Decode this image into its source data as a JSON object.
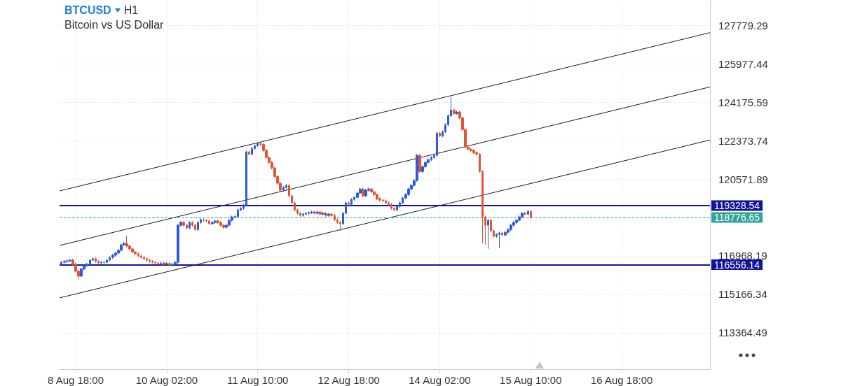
{
  "chart_data": {
    "type": "candlestick",
    "title": "BTCUSD",
    "subtitle": "Bitcoin vs US Dollar",
    "annotations": [
      "H1"
    ],
    "xlim": [
      "--08-08T12:20",
      "--08-18T01:00"
    ],
    "xticks": [
      {
        "value": "--08-08T18:00",
        "label": "8 Aug 18:00"
      },
      {
        "value": "--08-10T02:00",
        "label": "10 Aug 02:00"
      },
      {
        "value": "--08-11T10:00",
        "label": "11 Aug 10:00"
      },
      {
        "value": "--08-12T18:00",
        "label": "12 Aug 18:00"
      },
      {
        "value": "--08-14T02:00",
        "label": "14 Aug 02:00"
      },
      {
        "value": "--08-15T10:00",
        "label": "15 Aug 10:00"
      },
      {
        "value": "--08-16T18:00",
        "label": "16 Aug 18:00"
      }
    ],
    "ylim": [
      111650,
      128950
    ],
    "yticks": [
      113364.49,
      115166.34,
      116968.19,
      120571.89,
      122373.74,
      124175.59,
      125977.44,
      127779.29
    ],
    "grid": true,
    "series": [
      {
        "x": [
          "--08-08T13:00",
          "--08-08T14:00",
          "--08-08T15:00",
          "--08-08T16:00",
          "--08-08T17:00",
          "--08-08T18:00",
          "--08-08T19:00",
          "--08-08T20:00",
          "--08-08T21:00",
          "--08-08T22:00",
          "--08-08T23:00",
          "--08-09T00:00",
          "--08-09T01:00",
          "--08-09T02:00",
          "--08-09T03:00",
          "--08-09T04:00",
          "--08-09T05:00",
          "--08-09T06:00",
          "--08-09T07:00",
          "--08-09T08:00",
          "--08-09T09:00",
          "--08-09T10:00",
          "--08-09T11:00",
          "--08-09T12:00",
          "--08-09T13:00",
          "--08-09T14:00",
          "--08-09T15:00",
          "--08-09T16:00",
          "--08-09T17:00",
          "--08-09T18:00",
          "--08-09T19:00",
          "--08-09T20:00",
          "--08-09T21:00",
          "--08-09T22:00",
          "--08-09T23:00",
          "--08-10T00:00",
          "--08-10T01:00",
          "--08-10T02:00",
          "--08-10T03:00",
          "--08-10T04:00",
          "--08-10T05:00",
          "--08-10T06:00",
          "--08-10T07:00",
          "--08-10T08:00",
          "--08-10T09:00",
          "--08-10T10:00",
          "--08-10T11:00",
          "--08-10T12:00",
          "--08-10T13:00",
          "--08-10T14:00",
          "--08-10T15:00",
          "--08-10T16:00",
          "--08-10T17:00",
          "--08-10T18:00",
          "--08-10T19:00",
          "--08-10T20:00",
          "--08-10T21:00",
          "--08-10T22:00",
          "--08-10T23:00",
          "--08-11T00:00",
          "--08-11T01:00",
          "--08-11T02:00",
          "--08-11T03:00",
          "--08-11T04:00",
          "--08-11T05:00",
          "--08-11T06:00",
          "--08-11T07:00",
          "--08-11T08:00",
          "--08-11T09:00",
          "--08-11T10:00",
          "--08-11T11:00",
          "--08-11T12:00",
          "--08-11T13:00",
          "--08-11T14:00",
          "--08-11T15:00",
          "--08-11T16:00",
          "--08-11T17:00",
          "--08-11T18:00",
          "--08-11T19:00",
          "--08-11T20:00",
          "--08-11T21:00",
          "--08-11T22:00",
          "--08-11T23:00",
          "--08-12T00:00",
          "--08-12T01:00",
          "--08-12T02:00",
          "--08-12T03:00",
          "--08-12T04:00",
          "--08-12T05:00",
          "--08-12T06:00",
          "--08-12T07:00",
          "--08-12T08:00",
          "--08-12T09:00",
          "--08-12T10:00",
          "--08-12T11:00",
          "--08-12T12:00",
          "--08-12T13:00",
          "--08-12T14:00",
          "--08-12T15:00",
          "--08-12T16:00",
          "--08-12T17:00",
          "--08-12T18:00",
          "--08-12T19:00",
          "--08-12T20:00",
          "--08-12T21:00",
          "--08-12T22:00",
          "--08-12T23:00",
          "--08-13T00:00",
          "--08-13T01:00",
          "--08-13T02:00",
          "--08-13T03:00",
          "--08-13T04:00",
          "--08-13T05:00",
          "--08-13T06:00",
          "--08-13T07:00",
          "--08-13T08:00",
          "--08-13T09:00",
          "--08-13T10:00",
          "--08-13T11:00",
          "--08-13T12:00",
          "--08-13T13:00",
          "--08-13T14:00",
          "--08-13T15:00",
          "--08-13T16:00",
          "--08-13T17:00",
          "--08-13T18:00",
          "--08-13T19:00",
          "--08-13T20:00",
          "--08-13T21:00",
          "--08-13T22:00",
          "--08-13T23:00",
          "--08-14T00:00",
          "--08-14T01:00",
          "--08-14T02:00",
          "--08-14T03:00",
          "--08-14T04:00",
          "--08-14T05:00",
          "--08-14T06:00",
          "--08-14T07:00",
          "--08-14T08:00",
          "--08-14T09:00",
          "--08-14T10:00",
          "--08-14T11:00",
          "--08-14T12:00",
          "--08-14T13:00",
          "--08-14T14:00",
          "--08-14T15:00",
          "--08-14T16:00",
          "--08-14T17:00",
          "--08-14T18:00",
          "--08-14T19:00",
          "--08-14T20:00",
          "--08-14T21:00",
          "--08-14T22:00",
          "--08-14T23:00",
          "--08-15T00:00",
          "--08-15T01:00",
          "--08-15T02:00",
          "--08-15T03:00",
          "--08-15T04:00",
          "--08-15T05:00",
          "--08-15T06:00",
          "--08-15T07:00",
          "--08-15T08:00",
          "--08-15T09:00",
          "--08-15T10:00"
        ],
        "ohlc": [
          [
            116580,
            116730,
            116520,
            116670
          ],
          [
            116670,
            116770,
            116610,
            116710
          ],
          [
            116710,
            116800,
            116650,
            116740
          ],
          [
            116740,
            116830,
            116680,
            116770
          ],
          [
            116770,
            116830,
            116520,
            116580
          ],
          [
            116580,
            116640,
            116190,
            116250
          ],
          [
            116250,
            116310,
            115850,
            116020
          ],
          [
            116020,
            116410,
            115960,
            116350
          ],
          [
            116350,
            116570,
            116290,
            116510
          ],
          [
            116510,
            116640,
            116450,
            116580
          ],
          [
            116580,
            116830,
            116520,
            116770
          ],
          [
            116770,
            116900,
            116710,
            116840
          ],
          [
            116840,
            116900,
            116650,
            116710
          ],
          [
            116710,
            116770,
            116580,
            116640
          ],
          [
            116640,
            116730,
            116580,
            116670
          ],
          [
            116670,
            116730,
            116610,
            116670
          ],
          [
            116670,
            116830,
            116610,
            116770
          ],
          [
            116770,
            116960,
            116710,
            116900
          ],
          [
            116900,
            117060,
            116840,
            117000
          ],
          [
            117000,
            117160,
            116940,
            117100
          ],
          [
            117100,
            117290,
            117040,
            117230
          ],
          [
            117230,
            117550,
            117170,
            117490
          ],
          [
            117490,
            117620,
            117430,
            117560
          ],
          [
            117560,
            117920,
            117370,
            117430
          ],
          [
            117430,
            117490,
            117240,
            117300
          ],
          [
            117300,
            117360,
            117100,
            117160
          ],
          [
            117160,
            117220,
            117010,
            117070
          ],
          [
            117070,
            117130,
            116910,
            116970
          ],
          [
            116970,
            117030,
            116840,
            116900
          ],
          [
            116900,
            116960,
            116780,
            116840
          ],
          [
            116840,
            116900,
            116710,
            116770
          ],
          [
            116770,
            116830,
            116650,
            116710
          ],
          [
            116710,
            116770,
            116610,
            116670
          ],
          [
            116670,
            116730,
            116580,
            116640
          ],
          [
            116640,
            116700,
            116550,
            116610
          ],
          [
            116610,
            116700,
            116550,
            116640
          ],
          [
            116640,
            116700,
            116520,
            116580
          ],
          [
            116580,
            116670,
            116520,
            116610
          ],
          [
            116610,
            116670,
            116480,
            116540
          ],
          [
            116540,
            116640,
            116480,
            116580
          ],
          [
            116580,
            116730,
            116520,
            116670
          ],
          [
            116670,
            118470,
            116610,
            118410
          ],
          [
            118410,
            118600,
            118350,
            118540
          ],
          [
            118540,
            118600,
            118350,
            118410
          ],
          [
            118410,
            118470,
            118220,
            118280
          ],
          [
            118280,
            118600,
            118220,
            118540
          ],
          [
            118540,
            118600,
            118350,
            118410
          ],
          [
            118410,
            118470,
            118150,
            118210
          ],
          [
            118210,
            118600,
            118150,
            118540
          ],
          [
            118540,
            118730,
            118480,
            118670
          ],
          [
            118670,
            118730,
            118580,
            118640
          ],
          [
            118640,
            118700,
            118550,
            118610
          ],
          [
            118610,
            118670,
            118420,
            118480
          ],
          [
            118480,
            118600,
            118420,
            118540
          ],
          [
            118540,
            118670,
            118480,
            118610
          ],
          [
            118610,
            118670,
            118480,
            118540
          ],
          [
            118540,
            118600,
            118350,
            118410
          ],
          [
            118410,
            118470,
            118250,
            118310
          ],
          [
            118310,
            118470,
            118250,
            118410
          ],
          [
            118410,
            118700,
            118350,
            118640
          ],
          [
            118640,
            118860,
            118580,
            118800
          ],
          [
            118800,
            118880,
            118740,
            118820
          ],
          [
            118820,
            119190,
            118760,
            119130
          ],
          [
            119130,
            119260,
            119070,
            119200
          ],
          [
            119200,
            119420,
            119140,
            119360
          ],
          [
            119360,
            121910,
            119300,
            121850
          ],
          [
            121850,
            121910,
            121690,
            121750
          ],
          [
            121750,
            122070,
            121690,
            122010
          ],
          [
            122010,
            122200,
            121950,
            122140
          ],
          [
            122140,
            122310,
            122080,
            122240
          ],
          [
            122240,
            122300,
            122150,
            122210
          ],
          [
            122210,
            122270,
            121860,
            121920
          ],
          [
            121920,
            121980,
            121530,
            121590
          ],
          [
            121590,
            121650,
            121300,
            121360
          ],
          [
            121360,
            121420,
            121040,
            121100
          ],
          [
            121100,
            121160,
            120640,
            120700
          ],
          [
            120700,
            120760,
            120320,
            120380
          ],
          [
            120380,
            120440,
            119990,
            120050
          ],
          [
            120050,
            120240,
            119990,
            120180
          ],
          [
            120180,
            120340,
            120120,
            120280
          ],
          [
            120280,
            120340,
            119730,
            119790
          ],
          [
            119790,
            119850,
            119400,
            119460
          ],
          [
            119460,
            119520,
            119070,
            119130
          ],
          [
            119130,
            119190,
            118910,
            118970
          ],
          [
            118970,
            119030,
            118810,
            118870
          ],
          [
            118870,
            118990,
            118810,
            118930
          ],
          [
            118930,
            119030,
            118870,
            118970
          ],
          [
            118970,
            119060,
            118910,
            119000
          ],
          [
            119000,
            119090,
            118940,
            119030
          ],
          [
            119030,
            119090,
            118910,
            118970
          ],
          [
            118970,
            119090,
            118910,
            119030
          ],
          [
            119030,
            119090,
            118870,
            118930
          ],
          [
            118930,
            119030,
            118870,
            118970
          ],
          [
            118970,
            119030,
            118810,
            118870
          ],
          [
            118870,
            118990,
            118810,
            118930
          ],
          [
            118930,
            118990,
            118810,
            118870
          ],
          [
            118870,
            118930,
            118610,
            118670
          ],
          [
            118670,
            118730,
            118480,
            118540
          ],
          [
            118540,
            118600,
            118150,
            118480
          ],
          [
            118480,
            119030,
            118420,
            118970
          ],
          [
            118970,
            119520,
            118910,
            119460
          ],
          [
            119460,
            119520,
            119330,
            119390
          ],
          [
            119390,
            119680,
            119330,
            119620
          ],
          [
            119620,
            119780,
            119560,
            119720
          ],
          [
            119720,
            119980,
            119660,
            119920
          ],
          [
            119920,
            120170,
            119860,
            120110
          ],
          [
            120110,
            120170,
            119730,
            119790
          ],
          [
            119790,
            120110,
            119730,
            120050
          ],
          [
            120050,
            120170,
            119990,
            120110
          ],
          [
            120110,
            120170,
            119920,
            119980
          ],
          [
            119980,
            120040,
            119790,
            119850
          ],
          [
            119850,
            119910,
            119590,
            119650
          ],
          [
            119650,
            119710,
            119530,
            119590
          ],
          [
            119590,
            119650,
            119500,
            119560
          ],
          [
            119560,
            119620,
            119400,
            119460
          ],
          [
            119460,
            119520,
            119330,
            119390
          ],
          [
            119390,
            119450,
            119140,
            119200
          ],
          [
            119200,
            119260,
            119070,
            119130
          ],
          [
            119130,
            119350,
            119070,
            119290
          ],
          [
            119290,
            119520,
            119230,
            119460
          ],
          [
            119460,
            119750,
            119400,
            119690
          ],
          [
            119690,
            119910,
            119630,
            119850
          ],
          [
            119850,
            120170,
            119790,
            120110
          ],
          [
            120110,
            120340,
            120050,
            120280
          ],
          [
            120280,
            120570,
            120220,
            120510
          ],
          [
            120510,
            121750,
            120450,
            121690
          ],
          [
            121690,
            121750,
            120870,
            120930
          ],
          [
            120930,
            121220,
            120870,
            121160
          ],
          [
            121160,
            121420,
            121100,
            121360
          ],
          [
            121360,
            121550,
            121300,
            121490
          ],
          [
            121490,
            121650,
            121430,
            121590
          ],
          [
            121590,
            121750,
            121530,
            121690
          ],
          [
            121690,
            122790,
            121630,
            122730
          ],
          [
            122730,
            122790,
            122540,
            122600
          ],
          [
            122600,
            122860,
            122540,
            122800
          ],
          [
            122800,
            123190,
            122740,
            123130
          ],
          [
            123130,
            123610,
            123070,
            123550
          ],
          [
            123550,
            124440,
            123490,
            123820
          ],
          [
            123820,
            123880,
            123590,
            123650
          ],
          [
            123650,
            123780,
            123590,
            123720
          ],
          [
            123720,
            123780,
            123390,
            123450
          ],
          [
            123450,
            123510,
            122840,
            122900
          ],
          [
            122900,
            122960,
            122020,
            122080
          ],
          [
            122080,
            122140,
            121920,
            121980
          ],
          [
            121980,
            122040,
            121860,
            121920
          ],
          [
            121920,
            121980,
            121760,
            121820
          ],
          [
            121820,
            121880,
            121690,
            121750
          ],
          [
            121750,
            121810,
            120870,
            120930
          ],
          [
            120930,
            120990,
            117560,
            118800
          ],
          [
            118800,
            118860,
            117490,
            118410
          ],
          [
            118410,
            118700,
            117300,
            118640
          ],
          [
            118640,
            118700,
            118090,
            118150
          ],
          [
            118150,
            118210,
            117830,
            117890
          ],
          [
            117890,
            118040,
            117830,
            117980
          ],
          [
            117980,
            118110,
            117330,
            118050
          ],
          [
            118050,
            118110,
            117890,
            117950
          ],
          [
            117950,
            118140,
            117890,
            118080
          ],
          [
            118080,
            118270,
            118020,
            118210
          ],
          [
            118210,
            118470,
            118150,
            118410
          ],
          [
            118410,
            118600,
            118350,
            118540
          ],
          [
            118540,
            118700,
            118480,
            118640
          ],
          [
            118640,
            118860,
            118580,
            118800
          ],
          [
            118800,
            119030,
            118740,
            118970
          ],
          [
            118970,
            119030,
            118870,
            118930
          ],
          [
            118930,
            119120,
            118870,
            119060
          ],
          [
            119060,
            119120,
            118720,
            118780
          ]
        ]
      },
      {
        "type": "line",
        "color": "#1a1a1a",
        "x": [
          "--08-08T12:20",
          "--08-18T01:00"
        ],
        "values": [
          120020,
          127450
        ]
      },
      {
        "type": "line",
        "color": "#1a1a1a",
        "x": [
          "--08-08T12:20",
          "--08-18T01:00"
        ],
        "values": [
          117460,
          124900
        ]
      },
      {
        "type": "line",
        "color": "#1a1a1a",
        "x": [
          "--08-08T12:20",
          "--08-18T01:00"
        ],
        "values": [
          115000,
          122410
        ]
      }
    ],
    "ref_lines": [
      {
        "axis": "y",
        "value": 119328.54,
        "label": "119328.54",
        "color": "#12129e",
        "line_style": "solid"
      },
      {
        "axis": "y",
        "value": 118776.65,
        "label": "118776.65",
        "color": "#2fa59a",
        "line_style": "dashed"
      },
      {
        "axis": "y",
        "value": 116556.14,
        "label": "116556.14",
        "color": "#12129e",
        "line_style": "solid"
      }
    ]
  }
}
